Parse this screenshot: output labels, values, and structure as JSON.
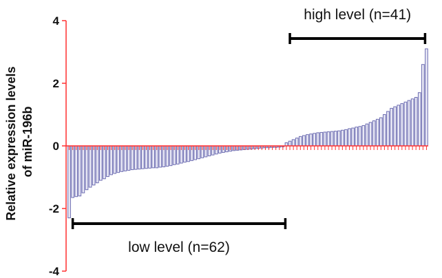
{
  "chart_data": {
    "type": "bar",
    "title": "",
    "xlabel": "",
    "ylabel_lines": [
      "Relative expression levels",
      "of miR-196b"
    ],
    "ylim": [
      -4,
      4
    ],
    "yticks": [
      4,
      2,
      0,
      -2,
      -4
    ],
    "grid": false,
    "colors": {
      "bar_fill": "#eaeaf6",
      "bar_stroke": "#6a6ab0",
      "axis": "#ff2f2f",
      "group_bracket": "#000000"
    },
    "series": [
      {
        "values": [
          -2.3,
          -1.65,
          -1.62,
          -1.6,
          -1.5,
          -1.4,
          -1.32,
          -1.25,
          -1.18,
          -1.1,
          -1.05,
          -0.98,
          -0.92,
          -0.88,
          -0.85,
          -0.82,
          -0.8,
          -0.78,
          -0.76,
          -0.75,
          -0.74,
          -0.73,
          -0.72,
          -0.71,
          -0.7,
          -0.7,
          -0.68,
          -0.67,
          -0.65,
          -0.63,
          -0.6,
          -0.58,
          -0.55,
          -0.52,
          -0.5,
          -0.47,
          -0.44,
          -0.41,
          -0.38,
          -0.35,
          -0.32,
          -0.29,
          -0.26,
          -0.23,
          -0.21,
          -0.19,
          -0.17,
          -0.15,
          -0.14,
          -0.13,
          -0.12,
          -0.11,
          -0.1,
          -0.09,
          -0.08,
          -0.07,
          -0.06,
          -0.06,
          -0.05,
          -0.05,
          -0.04,
          -0.03,
          0.1,
          0.15,
          0.2,
          0.25,
          0.3,
          0.33,
          0.36,
          0.38,
          0.4,
          0.42,
          0.43,
          0.44,
          0.45,
          0.46,
          0.47,
          0.48,
          0.5,
          0.52,
          0.55,
          0.57,
          0.6,
          0.62,
          0.65,
          0.7,
          0.75,
          0.8,
          0.85,
          0.9,
          1.0,
          1.1,
          1.2,
          1.25,
          1.3,
          1.35,
          1.4,
          1.45,
          1.5,
          1.55,
          1.7,
          2.6,
          3.1
        ]
      }
    ],
    "groups": [
      {
        "label": "low level (n=62)",
        "count": 62
      },
      {
        "label": "high level (n=41)",
        "count": 41
      }
    ]
  }
}
